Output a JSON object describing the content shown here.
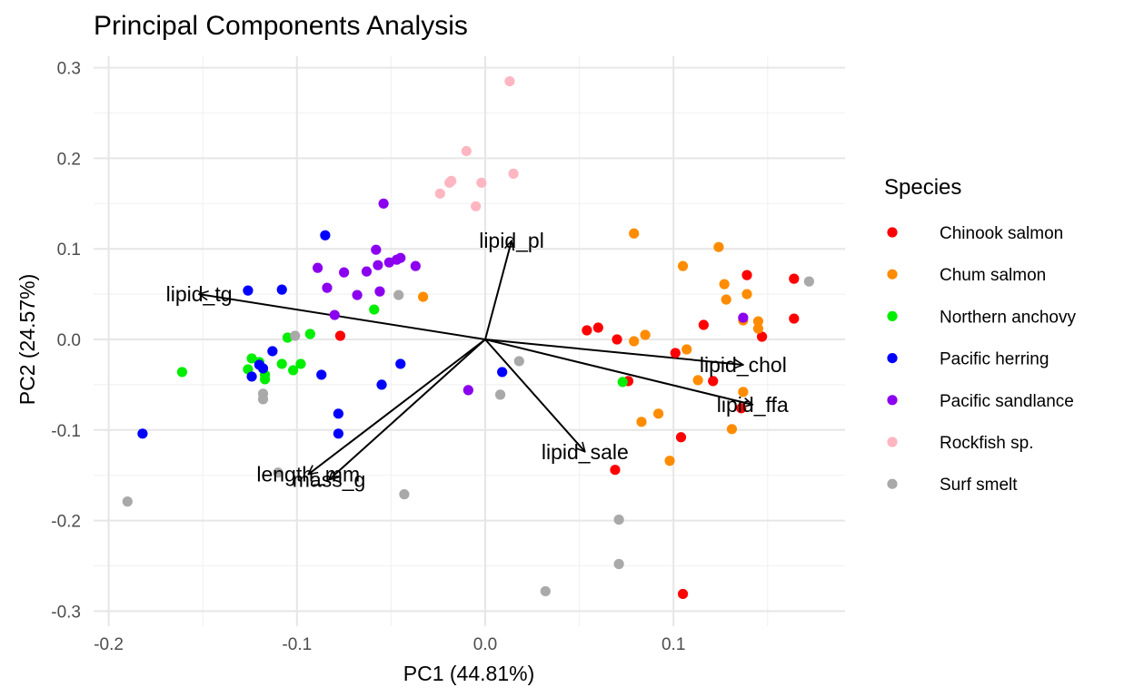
{
  "chart_data": {
    "type": "scatter",
    "title": "Principal Components Analysis",
    "xlabel": "PC1 (44.81%)",
    "ylabel": "PC2 (24.57%)",
    "xlim": [
      -0.2,
      0.19
    ],
    "ylim": [
      -0.3,
      0.3
    ],
    "x_ticks": [
      -0.2,
      -0.1,
      0.0,
      0.1
    ],
    "x_tick_labels": [
      "-0.2",
      "-0.1",
      "0.0",
      "0.1"
    ],
    "y_ticks": [
      -0.3,
      -0.2,
      -0.1,
      0.0,
      0.1,
      0.2,
      0.3
    ],
    "y_tick_labels": [
      "-0.3",
      "-0.2",
      "-0.1",
      "0.0",
      "0.1",
      "0.2",
      "0.3"
    ],
    "grid": true,
    "legend": {
      "title": "Species",
      "position": "right"
    },
    "series": [
      {
        "name": "Chinook salmon",
        "color": "#ff0000",
        "points": [
          [
            -0.077,
            0.004
          ],
          [
            0.054,
            0.01
          ],
          [
            0.06,
            0.013
          ],
          [
            0.07,
            0.0
          ],
          [
            0.076,
            -0.046
          ],
          [
            0.069,
            -0.144
          ],
          [
            0.104,
            -0.108
          ],
          [
            0.105,
            -0.281
          ],
          [
            0.101,
            -0.015
          ],
          [
            0.116,
            0.016
          ],
          [
            0.121,
            -0.046
          ],
          [
            0.139,
            0.071
          ],
          [
            0.136,
            -0.076
          ],
          [
            0.147,
            0.003
          ],
          [
            0.164,
            0.067
          ],
          [
            0.164,
            0.023
          ]
        ]
      },
      {
        "name": "Chum salmon",
        "color": "#ff8c00",
        "points": [
          [
            -0.033,
            0.047
          ],
          [
            0.079,
            0.117
          ],
          [
            0.079,
            -0.002
          ],
          [
            0.085,
            0.005
          ],
          [
            0.083,
            -0.091
          ],
          [
            0.092,
            -0.082
          ],
          [
            0.098,
            -0.134
          ],
          [
            0.105,
            0.081
          ],
          [
            0.107,
            -0.011
          ],
          [
            0.113,
            -0.045
          ],
          [
            0.124,
            0.102
          ],
          [
            0.127,
            0.061
          ],
          [
            0.128,
            0.044
          ],
          [
            0.139,
            0.05
          ],
          [
            0.137,
            0.021
          ],
          [
            0.145,
            0.02
          ],
          [
            0.145,
            0.012
          ],
          [
            0.131,
            -0.099
          ],
          [
            0.137,
            -0.058
          ]
        ]
      },
      {
        "name": "Northern anchovy",
        "color": "#00ee00",
        "points": [
          [
            -0.161,
            -0.036
          ],
          [
            -0.126,
            -0.033
          ],
          [
            -0.124,
            -0.021
          ],
          [
            -0.12,
            -0.025
          ],
          [
            -0.117,
            -0.039
          ],
          [
            -0.117,
            -0.044
          ],
          [
            -0.108,
            -0.027
          ],
          [
            -0.105,
            0.002
          ],
          [
            -0.102,
            -0.034
          ],
          [
            -0.098,
            -0.027
          ],
          [
            -0.093,
            0.006
          ],
          [
            -0.059,
            0.033
          ],
          [
            0.073,
            -0.047
          ]
        ]
      },
      {
        "name": "Pacific herring",
        "color": "#0000ff",
        "points": [
          [
            -0.182,
            -0.104
          ],
          [
            -0.126,
            0.054
          ],
          [
            -0.108,
            0.055
          ],
          [
            -0.124,
            -0.041
          ],
          [
            -0.12,
            -0.028
          ],
          [
            -0.118,
            -0.032
          ],
          [
            -0.113,
            -0.013
          ],
          [
            -0.085,
            0.115
          ],
          [
            -0.087,
            -0.039
          ],
          [
            -0.078,
            -0.082
          ],
          [
            -0.078,
            -0.104
          ],
          [
            -0.055,
            -0.05
          ],
          [
            -0.045,
            -0.027
          ],
          [
            0.009,
            -0.036
          ]
        ]
      },
      {
        "name": "Pacific sandlance",
        "color": "#8b00ee",
        "points": [
          [
            -0.054,
            0.15
          ],
          [
            -0.089,
            0.079
          ],
          [
            -0.084,
            0.057
          ],
          [
            -0.08,
            0.027
          ],
          [
            -0.075,
            0.074
          ],
          [
            -0.068,
            0.049
          ],
          [
            -0.063,
            0.075
          ],
          [
            -0.058,
            0.099
          ],
          [
            -0.057,
            0.082
          ],
          [
            -0.056,
            0.053
          ],
          [
            -0.051,
            0.085
          ],
          [
            -0.047,
            0.088
          ],
          [
            -0.045,
            0.09
          ],
          [
            -0.037,
            0.081
          ],
          [
            -0.009,
            -0.056
          ],
          [
            0.137,
            0.024
          ]
        ]
      },
      {
        "name": "Rockfish sp.",
        "color": "#ffb6c1",
        "points": [
          [
            0.013,
            0.285
          ],
          [
            -0.01,
            0.208
          ],
          [
            0.015,
            0.183
          ],
          [
            -0.018,
            0.175
          ],
          [
            -0.019,
            0.173
          ],
          [
            -0.024,
            0.161
          ],
          [
            -0.002,
            0.173
          ],
          [
            -0.005,
            0.147
          ]
        ]
      },
      {
        "name": "Surf smelt",
        "color": "#a9a9a9",
        "points": [
          [
            -0.19,
            -0.179
          ],
          [
            -0.118,
            -0.06
          ],
          [
            -0.118,
            -0.066
          ],
          [
            -0.101,
            0.004
          ],
          [
            -0.11,
            -0.147
          ],
          [
            -0.046,
            0.049
          ],
          [
            -0.043,
            -0.171
          ],
          [
            0.008,
            -0.061
          ],
          [
            0.018,
            -0.024
          ],
          [
            0.032,
            -0.278
          ],
          [
            0.071,
            -0.199
          ],
          [
            0.071,
            -0.248
          ],
          [
            0.172,
            0.064
          ]
        ]
      }
    ],
    "loadings": [
      {
        "name": "lipid_tg",
        "x": -0.152,
        "y": 0.05
      },
      {
        "name": "lipid_pl",
        "x": 0.014,
        "y": 0.109
      },
      {
        "name": "lipid_chol",
        "x": 0.137,
        "y": -0.028
      },
      {
        "name": "lipid_ffa",
        "x": 0.142,
        "y": -0.072
      },
      {
        "name": "lipid_sale",
        "x": 0.053,
        "y": -0.124
      },
      {
        "name": "length_mm",
        "x": -0.094,
        "y": -0.149
      },
      {
        "name": "mass_g",
        "x": -0.083,
        "y": -0.155
      }
    ]
  }
}
